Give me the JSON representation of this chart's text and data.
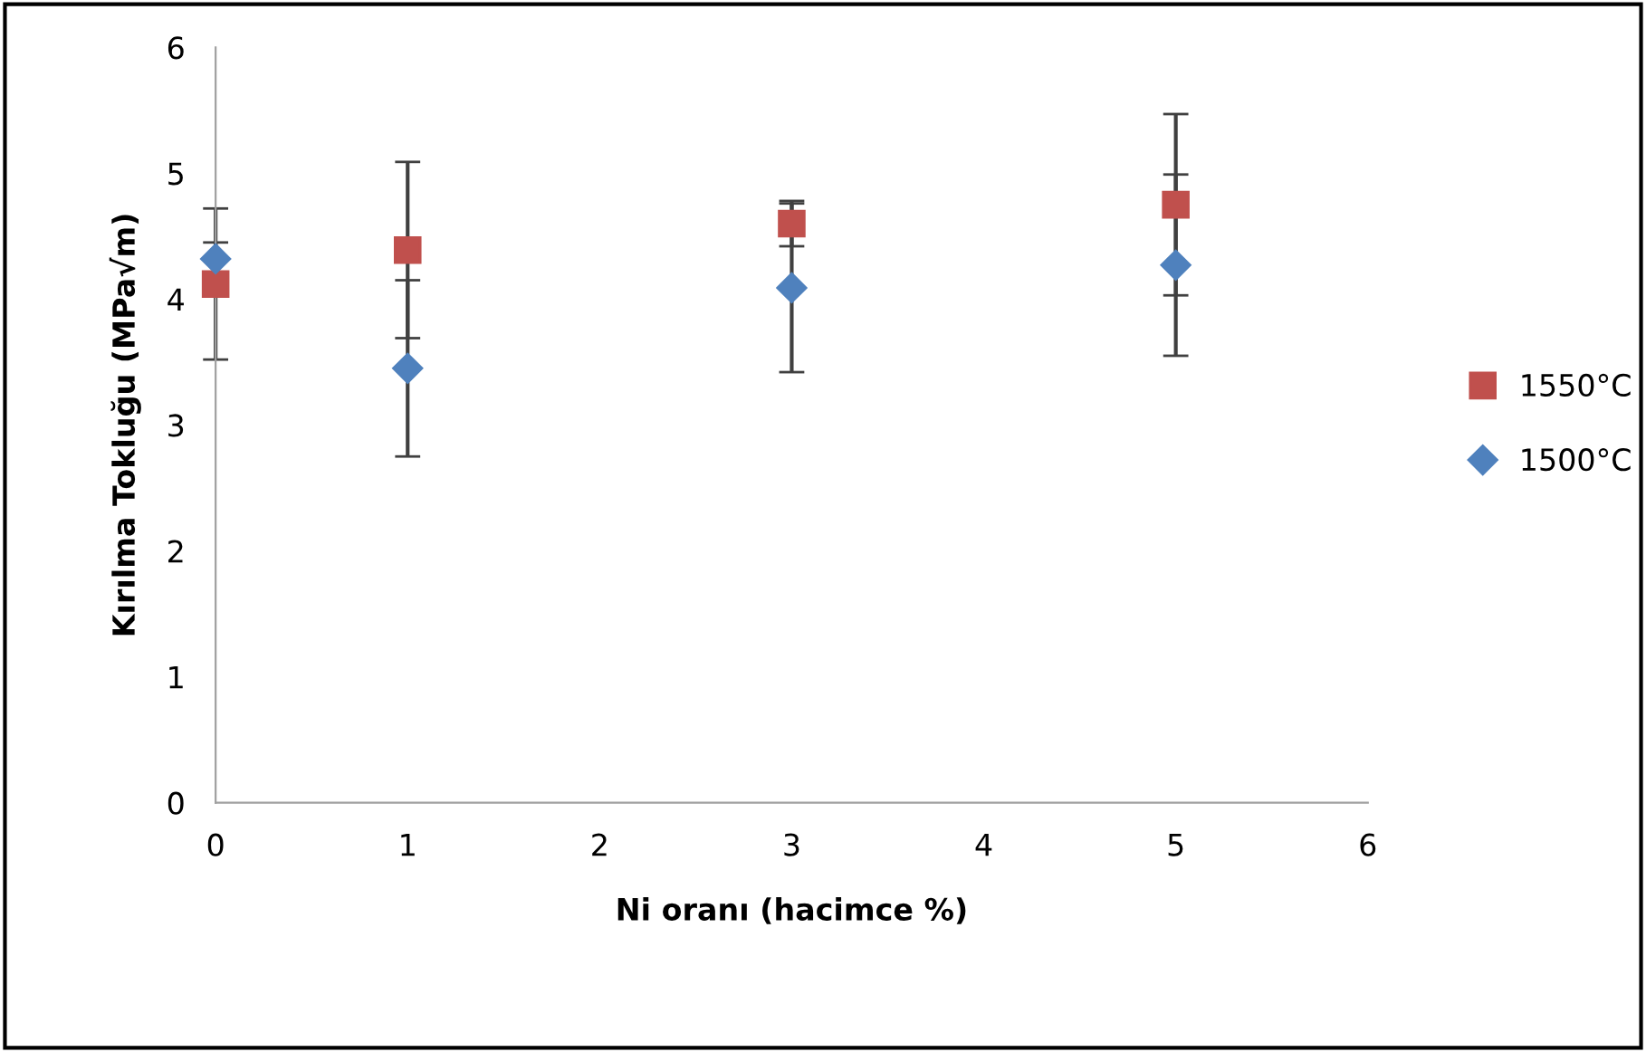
{
  "chart_data": {
    "type": "scatter",
    "xlabel": "Ni oranı (hacimce %)",
    "ylabel": "Kırılma Tokluğu (MPa√m)",
    "xlim": [
      0,
      6
    ],
    "xticks": [
      0,
      1,
      2,
      3,
      4,
      5,
      6
    ],
    "ylim": [
      0,
      6
    ],
    "yticks": [
      0,
      1,
      2,
      3,
      4,
      5,
      6
    ],
    "grid": false,
    "legend": "right",
    "series": [
      {
        "name": "1550°C",
        "color": "#c0504d",
        "marker": "square",
        "x": [
          0,
          1,
          3,
          5
        ],
        "values": [
          4.12,
          4.39,
          4.6,
          4.75
        ],
        "errors": [
          0.6,
          0.7,
          0.18,
          0.72
        ]
      },
      {
        "name": "1500°C",
        "color": "#4f81bd",
        "marker": "diamond",
        "x": [
          0,
          1,
          3,
          5
        ],
        "values": [
          4.32,
          3.45,
          4.09,
          4.27
        ],
        "errors": [
          0.13,
          0.7,
          0.67,
          0.72
        ]
      }
    ]
  }
}
